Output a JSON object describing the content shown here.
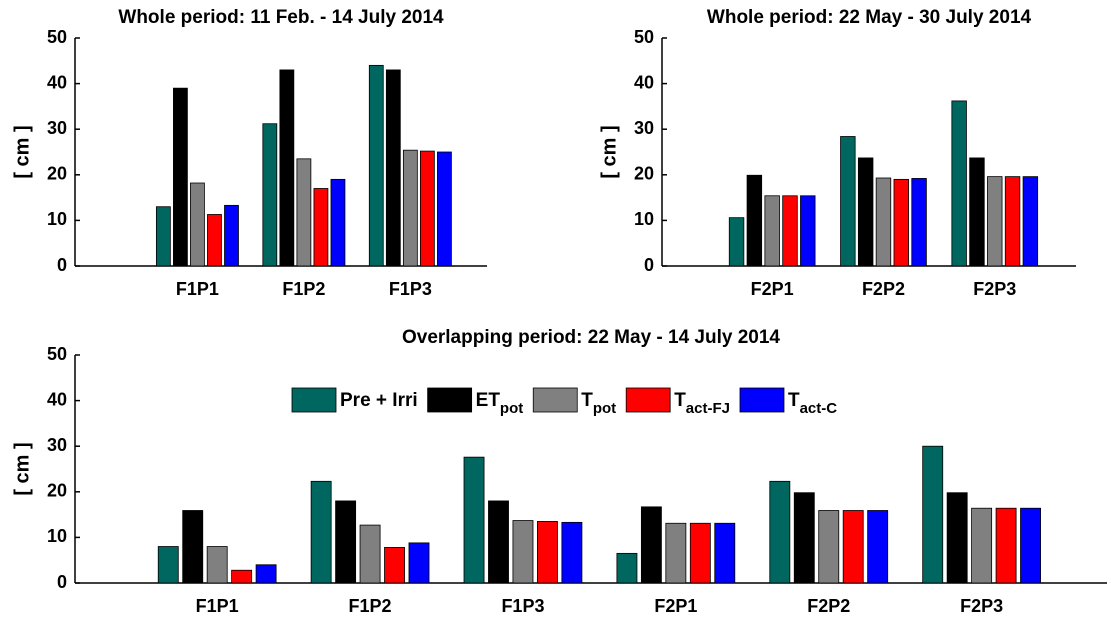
{
  "chart_data": [
    {
      "type": "bar",
      "title": "Whole period: 11 Feb. - 14 July 2014",
      "ylabel": "[ cm ]",
      "categories": [
        "F1P1",
        "F1P2",
        "F1P3"
      ],
      "ylim": [
        0,
        50
      ],
      "yticks": [
        0,
        10,
        20,
        30,
        40,
        50
      ],
      "series": [
        {
          "color": "#006660",
          "values": [
            13,
            31.2,
            44
          ]
        },
        {
          "color": "#000000",
          "values": [
            39,
            43,
            43
          ]
        },
        {
          "color": "#808080",
          "values": [
            18.2,
            23.5,
            25.4
          ]
        },
        {
          "color": "#ff0000",
          "values": [
            11.3,
            17,
            25.2
          ]
        },
        {
          "color": "#0000ff",
          "values": [
            13.3,
            19,
            25
          ]
        }
      ]
    },
    {
      "type": "bar",
      "title": "Whole period: 22 May - 30 July 2014",
      "ylabel": "[ cm ]",
      "categories": [
        "F2P1",
        "F2P2",
        "F2P3"
      ],
      "ylim": [
        0,
        50
      ],
      "yticks": [
        0,
        10,
        20,
        30,
        40,
        50
      ],
      "series": [
        {
          "color": "#006660",
          "values": [
            10.6,
            28.4,
            36.2
          ]
        },
        {
          "color": "#000000",
          "values": [
            19.9,
            23.7,
            23.7
          ]
        },
        {
          "color": "#808080",
          "values": [
            15.4,
            19.3,
            19.6
          ]
        },
        {
          "color": "#ff0000",
          "values": [
            15.4,
            19,
            19.6
          ]
        },
        {
          "color": "#0000ff",
          "values": [
            15.4,
            19.2,
            19.6
          ]
        }
      ]
    },
    {
      "type": "bar",
      "title": "Overlapping period: 22 May - 14 July 2014",
      "ylabel": "[ cm ]",
      "categories": [
        "F1P1",
        "F1P2",
        "F1P3",
        "F2P1",
        "F2P2",
        "F2P3"
      ],
      "ylim": [
        0,
        50
      ],
      "yticks": [
        0,
        10,
        20,
        30,
        40,
        50
      ],
      "legend": "top",
      "series": [
        {
          "name": "Pre + Irri",
          "color": "#006660",
          "values": [
            8,
            22.3,
            27.6,
            6.5,
            22.3,
            30
          ]
        },
        {
          "name": "ET",
          "subscript": "pot",
          "color": "#000000",
          "values": [
            15.9,
            18,
            18,
            16.7,
            19.8,
            19.8
          ]
        },
        {
          "name": "T",
          "subscript": "pot",
          "color": "#808080",
          "values": [
            8,
            12.7,
            13.7,
            13.1,
            15.9,
            16.4
          ]
        },
        {
          "name": "T",
          "subscript": "act-FJ",
          "color": "#ff0000",
          "values": [
            2.8,
            7.8,
            13.5,
            13.1,
            15.9,
            16.4
          ]
        },
        {
          "name": "T",
          "subscript": "act-C",
          "color": "#0000ff",
          "values": [
            4,
            8.8,
            13.3,
            13.1,
            15.9,
            16.4
          ]
        }
      ]
    }
  ]
}
